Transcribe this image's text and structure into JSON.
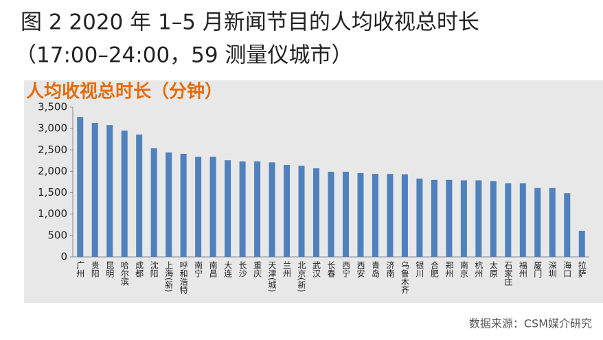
{
  "chart_data": {
    "type": "bar",
    "title": "图 2 2020 年 1–5 月新闻节目的人均收视总时长",
    "subtitle": "（17:00–24:00，59 测量仪城市）",
    "y_label": "人均收视总时长（分钟）",
    "source": "数据来源：CSM媒介研究",
    "categories": [
      "广州",
      "贵阳",
      "昆明",
      "哈尔滨",
      "成都",
      "沈阳",
      "上海(新)",
      "呼和浩特",
      "南宁",
      "南昌",
      "大连",
      "长沙",
      "重庆",
      "天津(城)",
      "兰州",
      "北京(新)",
      "武汉",
      "长春",
      "西宁",
      "西安",
      "青岛",
      "济南",
      "乌鲁木齐",
      "银川",
      "合肥",
      "郑州",
      "南京",
      "杭州",
      "太原",
      "石家庄",
      "福州",
      "厦门",
      "深圳",
      "海口",
      "拉萨"
    ],
    "values": [
      3270,
      3130,
      3080,
      2950,
      2860,
      2540,
      2440,
      2410,
      2340,
      2340,
      2260,
      2230,
      2230,
      2210,
      2150,
      2130,
      2070,
      1990,
      1990,
      1960,
      1940,
      1940,
      1930,
      1830,
      1800,
      1800,
      1790,
      1790,
      1770,
      1720,
      1720,
      1610,
      1610,
      1490,
      610
    ],
    "color": "#4f81bd",
    "ylim": [
      0,
      3500
    ],
    "yticks": [
      0,
      500,
      {
        "value": 1000,
        "label": "1,000"
      },
      {
        "value": 1500,
        "label": "1,500"
      },
      {
        "value": 2000,
        "label": "2,000"
      },
      {
        "value": 2500,
        "label": "2,500"
      },
      {
        "value": 3000,
        "label": "3,000"
      },
      {
        "value": 3500,
        "label": "3,500"
      }
    ],
    "grid": false
  }
}
